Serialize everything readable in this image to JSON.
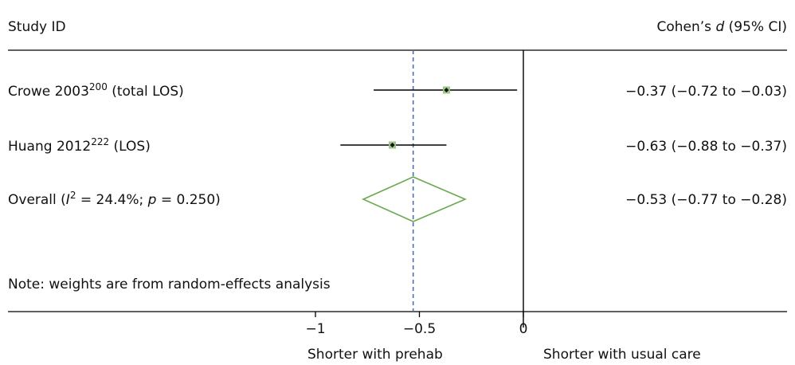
{
  "chart_data": {
    "type": "forest",
    "header_left": "Study ID",
    "header_right_parts": [
      "Cohen’s ",
      "d",
      " (95% CI)"
    ],
    "studies": [
      {
        "label": "Crowe 2003",
        "sup": "200",
        "suffix": " (total LOS)",
        "estimate": -0.37,
        "ci_low": -0.72,
        "ci_high": -0.03,
        "ci_text": "−0.37 (−0.72 to −0.03)"
      },
      {
        "label": "Huang 2012",
        "sup": "222",
        "suffix": " (LOS)",
        "estimate": -0.63,
        "ci_low": -0.88,
        "ci_high": -0.37,
        "ci_text": "−0.63 (−0.88 to −0.37)"
      }
    ],
    "overall": {
      "label_parts": [
        "Overall (",
        "I",
        "2",
        " = 24.4%; ",
        "p",
        " = 0.250)"
      ],
      "estimate": -0.53,
      "ci_low": -0.77,
      "ci_high": -0.28,
      "ci_text": "−0.53 (−0.77 to −0.28)"
    },
    "note": "Note: weights are from random-effects analysis",
    "x_ticks": [
      -1,
      -0.5,
      0
    ],
    "x_tick_labels": [
      "−1",
      "−0.5",
      "0"
    ],
    "reference_line": 0,
    "overall_line": -0.53,
    "xlabel_left": "Shorter with prehab",
    "xlabel_right": "Shorter with usual care",
    "colors": {
      "diamond": "#6aa84f",
      "box": "#9fc58a",
      "dashed_line": "#4a6fb5",
      "lines": "#000000"
    }
  }
}
